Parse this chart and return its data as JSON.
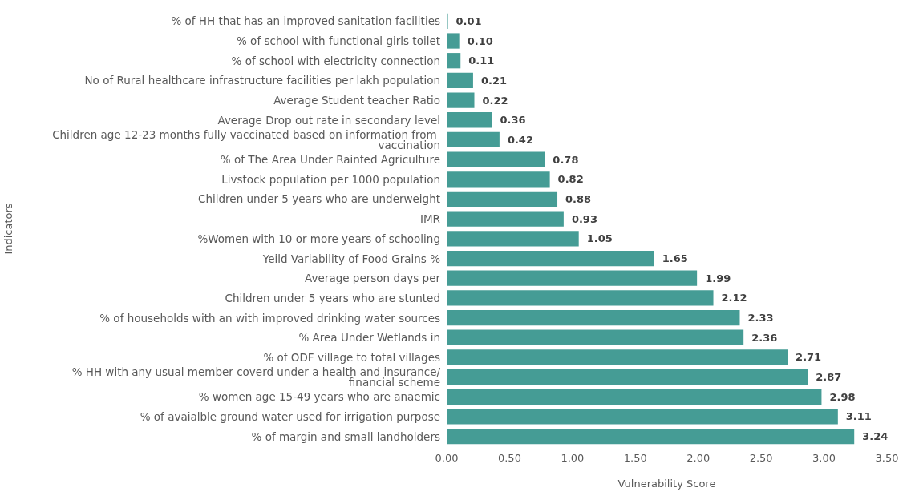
{
  "chart_data": {
    "type": "bar",
    "orientation": "horizontal",
    "xlabel": "Vulnerability Score",
    "ylabel": "Indicators",
    "categories": [
      "% of HH that has an improved sanitation facilities",
      "% of school with functional girls toilet",
      "% of school with electricity connection",
      "No of Rural healthcare infrastructure facilities per lakh population",
      "Average Student teacher Ratio",
      "Average Drop out rate in secondary level",
      "Children age 12-23 months fully vaccinated based on information from vaccination",
      "% of The Area Under Rainfed Agriculture",
      "Livstock population per 1000 population",
      "Children under 5 years who are underweight",
      "IMR",
      "%Women with 10 or more years of schooling",
      "Yeild Variability of Food Grains %",
      "Average person days per",
      "Children under 5 years who are stunted",
      "% of households with an with improved drinking water sources",
      "% Area Under Wetlands in",
      "% of ODF village to total villages",
      "% HH with any usual member coverd under a health and insurance/financial scheme",
      "% women age 15-49 years who are anaemic",
      "% of avaialble ground water used for irrigation purpose",
      "% of margin and small landholders"
    ],
    "values": [
      0.01,
      0.1,
      0.11,
      0.21,
      0.22,
      0.36,
      0.42,
      0.78,
      0.82,
      0.88,
      0.93,
      1.05,
      1.65,
      1.99,
      2.12,
      2.33,
      2.36,
      2.71,
      2.87,
      2.98,
      3.11,
      3.24
    ],
    "value_labels": [
      "0.01",
      "0.10",
      "0.11",
      "0.21",
      "0.22",
      "0.36",
      "0.42",
      "0.78",
      "0.82",
      "0.88",
      "0.93",
      "1.05",
      "1.65",
      "1.99",
      "2.12",
      "2.33",
      "2.36",
      "2.71",
      "2.87",
      "2.98",
      "3.11",
      "3.24"
    ],
    "color": "#459c95",
    "xlim": [
      0,
      3.5
    ],
    "xticks": [
      {
        "value": 0,
        "label": "0.00"
      },
      {
        "value": 0.5,
        "label": "0.50"
      },
      {
        "value": 1,
        "label": "1.00"
      },
      {
        "value": 1.5,
        "label": "1.50"
      },
      {
        "value": 2,
        "label": "2.00"
      },
      {
        "value": 2.5,
        "label": "2.50"
      },
      {
        "value": 3,
        "label": "3.00"
      },
      {
        "value": 3.5,
        "label": "3.50"
      }
    ],
    "grid": false
  }
}
